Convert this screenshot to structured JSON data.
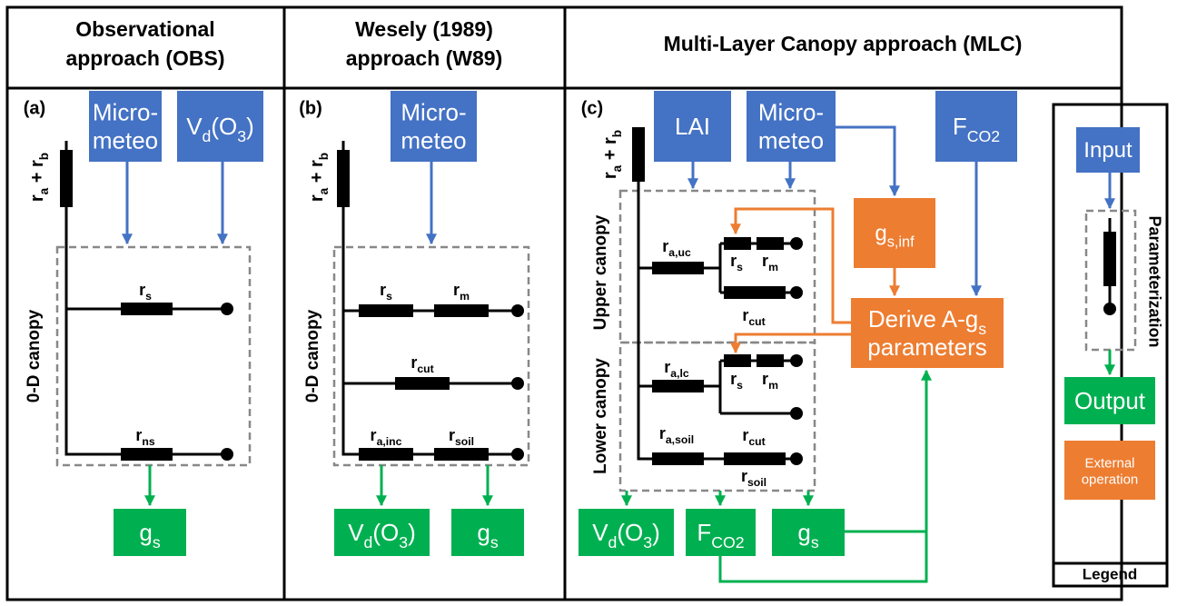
{
  "obs": {
    "title": [
      [
        "Observational"
      ],
      [
        "approach (OBS)"
      ]
    ],
    "letter": "(a)",
    "input_meteo": [
      [
        "Micro-"
      ],
      [
        "meteo"
      ]
    ],
    "input_vd": [
      [
        "V",
        "d",
        "(O",
        "3",
        ")"
      ]
    ],
    "r_ab": [
      "r",
      "a",
      " + r",
      "b"
    ],
    "canopy": "0-D canopy",
    "r_s": [
      "r",
      "s"
    ],
    "r_ns": [
      "r",
      "ns"
    ],
    "output_gs": [
      [
        "g",
        "s"
      ]
    ]
  },
  "w89": {
    "title": [
      [
        "Wesely (1989)"
      ],
      [
        "approach (W89)"
      ]
    ],
    "letter": "(b)",
    "input_meteo": [
      [
        "Micro-"
      ],
      [
        "meteo"
      ]
    ],
    "r_ab": [
      "r",
      "a",
      " + r",
      "b"
    ],
    "canopy": "0-D canopy",
    "r_s": [
      "r",
      "s"
    ],
    "r_m": [
      "r",
      "m"
    ],
    "r_cut": [
      "r",
      "cut"
    ],
    "r_ainc": [
      "r",
      "a,inc"
    ],
    "r_soil": [
      "r",
      "soil"
    ],
    "output_vd": [
      [
        "V",
        "d",
        "(O",
        "3",
        ")"
      ]
    ],
    "output_gs": [
      [
        "g",
        "s"
      ]
    ]
  },
  "mlc": {
    "title": [
      [
        "Multi-Layer Canopy approach (MLC)"
      ]
    ],
    "letter": "(c)",
    "input_lai": [
      [
        "LAI"
      ]
    ],
    "input_meteo": [
      [
        "Micro-"
      ],
      [
        "meteo"
      ]
    ],
    "input_fco2": [
      [
        "F",
        "CO2"
      ]
    ],
    "r_ab": [
      "r",
      "a",
      " + r",
      "b"
    ],
    "upper": "Upper canopy",
    "lower": "Lower canopy",
    "r_auc": [
      "r",
      "a,uc"
    ],
    "r_s_upper": [
      "r",
      "s"
    ],
    "r_m_upper": [
      "r",
      "m"
    ],
    "r_cut_upper": [
      "r",
      "cut"
    ],
    "r_alc": [
      "r",
      "a,lc"
    ],
    "r_s_lower": [
      "r",
      "s"
    ],
    "r_m_lower": [
      "r",
      "m"
    ],
    "r_cut_lower": [
      "r",
      "cut"
    ],
    "r_asoil": [
      "r",
      "a,soil"
    ],
    "r_soil": [
      "r",
      "soil"
    ],
    "gs_inf": [
      [
        "g",
        "s,inf"
      ]
    ],
    "derive": [
      [
        "Derive A-g",
        "s"
      ],
      [
        "parameters"
      ]
    ],
    "output_vd": [
      [
        "V",
        "d",
        "(O",
        "3",
        ")"
      ]
    ],
    "output_fco2": [
      [
        "F",
        "CO2"
      ]
    ],
    "output_gs": [
      [
        "g",
        "s"
      ]
    ]
  },
  "legend": {
    "input": [
      [
        "Input"
      ]
    ],
    "parameterization": "Parameterization",
    "output": [
      [
        "Output"
      ]
    ],
    "external": [
      [
        "External"
      ],
      [
        "operation"
      ]
    ],
    "title": "Legend"
  }
}
